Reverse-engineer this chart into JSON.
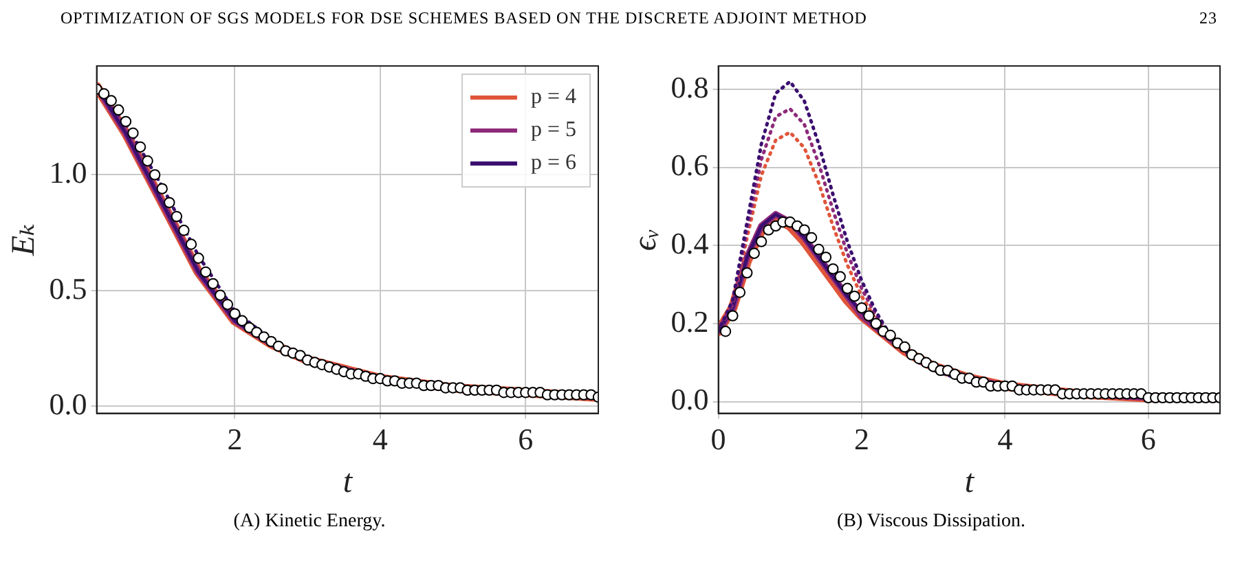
{
  "chart_data": [
    {
      "type": "line",
      "title": "(A) Kinetic Energy.",
      "xlabel": "t",
      "ylabel": "Eₖ",
      "annotations": [
        "OPTIMIZATION OF SGS MODELS FOR DSE SCHEMES BASED ON THE DISCRETE ADJOINT METHOD",
        "23"
      ],
      "xlim": [
        0.1,
        7
      ],
      "xticks": [
        2,
        4,
        6
      ],
      "ylim": [
        -0.03,
        1.47
      ],
      "yticks": [
        {
          "value": 0,
          "label": "0.0"
        },
        {
          "value": 0.5,
          "label": "0.5"
        },
        {
          "value": 1,
          "label": "1.0"
        }
      ],
      "grid": true,
      "legend": "top right",
      "series": [
        {
          "name": "p = 4",
          "color": "#e0553a",
          "type": "line",
          "line_style": "solid",
          "x": [
            0.1,
            0.5,
            1,
            1.5,
            2,
            2.5,
            3,
            3.5,
            4,
            5,
            6,
            7
          ],
          "values": [
            1.38,
            1.18,
            0.88,
            0.58,
            0.37,
            0.27,
            0.2,
            0.16,
            0.12,
            0.08,
            0.06,
            0.04
          ]
        },
        {
          "name": "p = 5",
          "color": "#8e2a7a",
          "type": "line",
          "line_style": "solid",
          "x": [
            0.1,
            0.5,
            1,
            1.5,
            2,
            2.5,
            3,
            3.5,
            4,
            5,
            6,
            7
          ],
          "values": [
            1.38,
            1.18,
            0.88,
            0.58,
            0.37,
            0.27,
            0.2,
            0.16,
            0.12,
            0.08,
            0.06,
            0.04
          ]
        },
        {
          "name": "p = 6",
          "color": "#3b0f70",
          "type": "line",
          "line_style": "solid",
          "x": [
            0.1,
            0.5,
            1,
            1.5,
            2,
            2.5,
            3,
            3.5,
            4,
            5,
            6,
            7
          ],
          "values": [
            1.38,
            1.18,
            0.88,
            0.58,
            0.37,
            0.27,
            0.2,
            0.16,
            0.12,
            0.08,
            0.06,
            0.04
          ]
        },
        {
          "color": "#3b0f70",
          "type": "line",
          "line_style": "dotted",
          "x": [
            0.1,
            0.5,
            1,
            1.5,
            2,
            2.5
          ],
          "values": [
            1.38,
            1.22,
            0.95,
            0.65,
            0.41,
            0.29
          ]
        },
        {
          "color": "#000000",
          "type": "scatter",
          "marker": "circle",
          "x": [
            0.1,
            0.2,
            0.3,
            0.4,
            0.5,
            0.6,
            0.7,
            0.8,
            0.9,
            1,
            1.1,
            1.2,
            1.3,
            1.4,
            1.5,
            1.6,
            1.7,
            1.8,
            1.9,
            2,
            2.1,
            2.2,
            2.3,
            2.4,
            2.5,
            2.6,
            2.7,
            2.8,
            2.9,
            3,
            3.1,
            3.2,
            3.3,
            3.4,
            3.5,
            3.6,
            3.7,
            3.8,
            3.9,
            4,
            4.1,
            4.2,
            4.3,
            4.4,
            4.5,
            4.6,
            4.7,
            4.8,
            4.9,
            5,
            5.1,
            5.2,
            5.3,
            5.4,
            5.5,
            5.6,
            5.7,
            5.8,
            5.9,
            6,
            6.1,
            6.2,
            6.3,
            6.4,
            6.5,
            6.6,
            6.7,
            6.8,
            6.9,
            7
          ],
          "values": [
            1.37,
            1.35,
            1.32,
            1.28,
            1.23,
            1.18,
            1.12,
            1.06,
            1,
            0.94,
            0.88,
            0.82,
            0.76,
            0.7,
            0.64,
            0.58,
            0.53,
            0.48,
            0.44,
            0.4,
            0.37,
            0.34,
            0.32,
            0.3,
            0.28,
            0.26,
            0.24,
            0.23,
            0.22,
            0.2,
            0.19,
            0.18,
            0.17,
            0.16,
            0.15,
            0.14,
            0.14,
            0.13,
            0.12,
            0.12,
            0.11,
            0.11,
            0.1,
            0.1,
            0.1,
            0.09,
            0.09,
            0.09,
            0.08,
            0.08,
            0.08,
            0.07,
            0.07,
            0.07,
            0.07,
            0.07,
            0.06,
            0.06,
            0.06,
            0.06,
            0.06,
            0.06,
            0.05,
            0.05,
            0.05,
            0.05,
            0.05,
            0.05,
            0.05,
            0.04
          ]
        }
      ]
    },
    {
      "type": "line",
      "title": "(B) Viscous Dissipation.",
      "xlabel": "t",
      "ylabel": "ϵᵥ",
      "xlim": [
        0,
        7
      ],
      "xticks": [
        0,
        2,
        4,
        6
      ],
      "ylim": [
        -0.03,
        0.86
      ],
      "yticks": [
        {
          "value": 0,
          "label": "0.0"
        },
        {
          "value": 0.2,
          "label": "0.2"
        },
        {
          "value": 0.4,
          "label": "0.4"
        },
        {
          "value": 0.6,
          "label": "0.6"
        },
        {
          "value": 0.8,
          "label": "0.8"
        }
      ],
      "grid": true,
      "series": [
        {
          "color": "#e0553a",
          "type": "line",
          "line_style": "solid",
          "x": [
            0,
            0.2,
            0.4,
            0.6,
            0.8,
            1,
            1.2,
            1.4,
            1.6,
            1.8,
            2,
            2.2,
            2.4,
            2.6,
            2.8,
            3,
            3.5,
            4,
            5,
            6,
            7
          ],
          "values": [
            0.18,
            0.24,
            0.36,
            0.44,
            0.47,
            0.45,
            0.41,
            0.36,
            0.31,
            0.26,
            0.22,
            0.19,
            0.16,
            0.13,
            0.11,
            0.09,
            0.06,
            0.04,
            0.02,
            0.01,
            0.01
          ]
        },
        {
          "color": "#8e2a7a",
          "type": "line",
          "line_style": "solid",
          "x": [
            0,
            0.2,
            0.4,
            0.6,
            0.8,
            1,
            1.2,
            1.4,
            1.6,
            1.8,
            2,
            2.2,
            2.4,
            2.6,
            2.8,
            3,
            3.5,
            4,
            5,
            6,
            7
          ],
          "values": [
            0.18,
            0.24,
            0.37,
            0.45,
            0.48,
            0.46,
            0.42,
            0.37,
            0.32,
            0.27,
            0.22,
            0.19,
            0.16,
            0.13,
            0.11,
            0.09,
            0.06,
            0.04,
            0.02,
            0.01,
            0.01
          ]
        },
        {
          "color": "#3b0f70",
          "type": "line",
          "line_style": "solid",
          "x": [
            0,
            0.2,
            0.4,
            0.6,
            0.8,
            1,
            1.2,
            1.4,
            1.6,
            1.8,
            2,
            2.2,
            2.4,
            2.6,
            2.8,
            3,
            3.5,
            4,
            5,
            6,
            7
          ],
          "values": [
            0.18,
            0.24,
            0.37,
            0.45,
            0.48,
            0.46,
            0.42,
            0.37,
            0.32,
            0.27,
            0.23,
            0.19,
            0.16,
            0.13,
            0.11,
            0.09,
            0.06,
            0.04,
            0.02,
            0.01,
            0.01
          ]
        },
        {
          "color": "#e0553a",
          "type": "line",
          "line_style": "dotted",
          "x": [
            0,
            0.2,
            0.4,
            0.6,
            0.8,
            1,
            1.2,
            1.4,
            1.6,
            1.8,
            2,
            2.2,
            2.4,
            2.6,
            2.8,
            3,
            3.5,
            4,
            4.5
          ],
          "values": [
            0.18,
            0.25,
            0.42,
            0.58,
            0.67,
            0.69,
            0.65,
            0.56,
            0.45,
            0.35,
            0.27,
            0.21,
            0.16,
            0.12,
            0.1,
            0.08,
            0.05,
            0.04,
            0.03
          ]
        },
        {
          "color": "#8e2a7a",
          "type": "line",
          "line_style": "dotted",
          "x": [
            0,
            0.2,
            0.4,
            0.6,
            0.8,
            1,
            1.2,
            1.4,
            1.6,
            1.8,
            2,
            2.2,
            2.4,
            2.6,
            2.8,
            3,
            3.5,
            4,
            4.5
          ],
          "values": [
            0.18,
            0.25,
            0.44,
            0.62,
            0.73,
            0.75,
            0.71,
            0.61,
            0.49,
            0.38,
            0.29,
            0.22,
            0.17,
            0.13,
            0.1,
            0.08,
            0.05,
            0.04,
            0.03
          ]
        },
        {
          "color": "#3b0f70",
          "type": "line",
          "line_style": "dotted",
          "x": [
            0,
            0.2,
            0.4,
            0.6,
            0.8,
            1,
            1.2,
            1.4,
            1.6,
            1.8,
            2,
            2.2,
            2.4,
            2.6,
            2.8,
            3,
            3.5,
            4,
            4.5
          ],
          "values": [
            0.18,
            0.26,
            0.46,
            0.66,
            0.79,
            0.82,
            0.77,
            0.66,
            0.53,
            0.41,
            0.31,
            0.23,
            0.17,
            0.13,
            0.1,
            0.08,
            0.05,
            0.04,
            0.03
          ]
        },
        {
          "color": "#000000",
          "type": "scatter",
          "marker": "circle",
          "x": [
            0.1,
            0.2,
            0.3,
            0.4,
            0.5,
            0.6,
            0.7,
            0.8,
            0.9,
            1,
            1.1,
            1.2,
            1.3,
            1.4,
            1.5,
            1.6,
            1.7,
            1.8,
            1.9,
            2,
            2.1,
            2.2,
            2.3,
            2.4,
            2.5,
            2.6,
            2.7,
            2.8,
            2.9,
            3,
            3.1,
            3.2,
            3.3,
            3.4,
            3.5,
            3.6,
            3.7,
            3.8,
            3.9,
            4,
            4.1,
            4.2,
            4.3,
            4.4,
            4.5,
            4.6,
            4.7,
            4.8,
            4.9,
            5,
            5.1,
            5.2,
            5.3,
            5.4,
            5.5,
            5.6,
            5.7,
            5.8,
            5.9,
            6,
            6.1,
            6.2,
            6.3,
            6.4,
            6.5,
            6.6,
            6.7,
            6.8,
            6.9,
            7
          ],
          "values": [
            0.18,
            0.22,
            0.28,
            0.33,
            0.38,
            0.41,
            0.44,
            0.45,
            0.46,
            0.46,
            0.45,
            0.44,
            0.42,
            0.39,
            0.37,
            0.34,
            0.32,
            0.29,
            0.27,
            0.24,
            0.22,
            0.2,
            0.18,
            0.17,
            0.15,
            0.14,
            0.12,
            0.11,
            0.1,
            0.09,
            0.08,
            0.08,
            0.07,
            0.06,
            0.06,
            0.05,
            0.05,
            0.04,
            0.04,
            0.04,
            0.04,
            0.03,
            0.03,
            0.03,
            0.03,
            0.03,
            0.03,
            0.02,
            0.02,
            0.02,
            0.02,
            0.02,
            0.02,
            0.02,
            0.02,
            0.02,
            0.02,
            0.02,
            0.02,
            0.01,
            0.01,
            0.01,
            0.01,
            0.01,
            0.01,
            0.01,
            0.01,
            0.01,
            0.01,
            0.01
          ]
        }
      ]
    }
  ]
}
